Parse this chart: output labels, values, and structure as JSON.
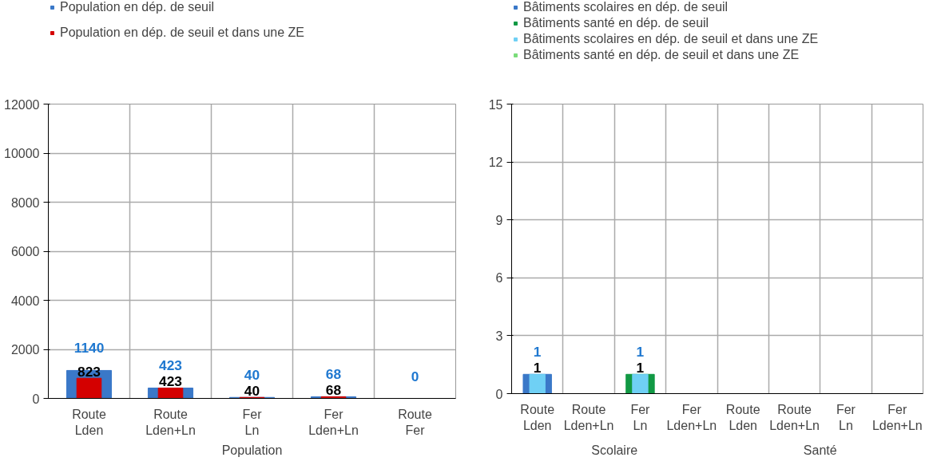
{
  "chart_data": [
    {
      "type": "bar",
      "xlabel": "Population",
      "categories": [
        "Route\nLden",
        "Route\nLden+Ln",
        "Fer\nLn",
        "Fer\nLden+Ln",
        "Route\nFer"
      ],
      "ylim": [
        0,
        12000
      ],
      "yticks": [
        0,
        2000,
        4000,
        6000,
        8000,
        10000,
        12000
      ],
      "grid": true,
      "legend": "top",
      "series": [
        {
          "name": "Population en dép. de seuil",
          "color": "#3a78c8",
          "values": [
            1140,
            423,
            40,
            68,
            0
          ],
          "value_labels": [
            "1140",
            "423",
            "40",
            "68",
            "0"
          ]
        },
        {
          "name": "Population en dép. de seuil et dans une ZE",
          "color": "#d40000",
          "values": [
            823,
            423,
            40,
            68,
            null
          ],
          "value_labels": [
            "823",
            "423",
            "40",
            "68",
            null
          ]
        }
      ]
    },
    {
      "type": "bar",
      "annotations": [
        "Scolaire",
        "Santé"
      ],
      "categories": [
        "Route\nLden",
        "Route\nLden+Ln",
        "Fer\nLn",
        "Fer\nLden+Ln",
        "Route\nLden",
        "Route\nLden+Ln",
        "Fer\nLn",
        "Fer\nLden+Ln"
      ],
      "ylim": [
        0,
        15
      ],
      "yticks": [
        0,
        3,
        6,
        9,
        12,
        15
      ],
      "grid": true,
      "legend": "top",
      "series": [
        {
          "name": "Bâtiments scolaires en dép. de seuil",
          "color": "#3a78c8",
          "values": [
            1,
            null,
            null,
            null,
            null,
            null,
            null,
            null
          ],
          "value_labels": [
            "1",
            null,
            null,
            null,
            null,
            null,
            null,
            null
          ]
        },
        {
          "name": "Bâtiments santé en dép. de seuil",
          "color": "#119944",
          "values": [
            null,
            null,
            1,
            null,
            null,
            null,
            null,
            null
          ],
          "value_labels": [
            null,
            null,
            "1",
            null,
            null,
            null,
            null,
            null
          ]
        },
        {
          "name": "Bâtiments scolaires en dép. de seuil et dans une ZE",
          "color": "#6fd0f5",
          "values": [
            1,
            null,
            1,
            null,
            null,
            null,
            null,
            null
          ],
          "value_labels": [
            "1",
            null,
            "1",
            null,
            null,
            null,
            null,
            null
          ]
        },
        {
          "name": "Bâtiments santé en dép. de seuil et dans une ZE",
          "color": "#7adc7a",
          "values": [
            null,
            null,
            null,
            null,
            null,
            null,
            null,
            null
          ]
        }
      ]
    }
  ]
}
